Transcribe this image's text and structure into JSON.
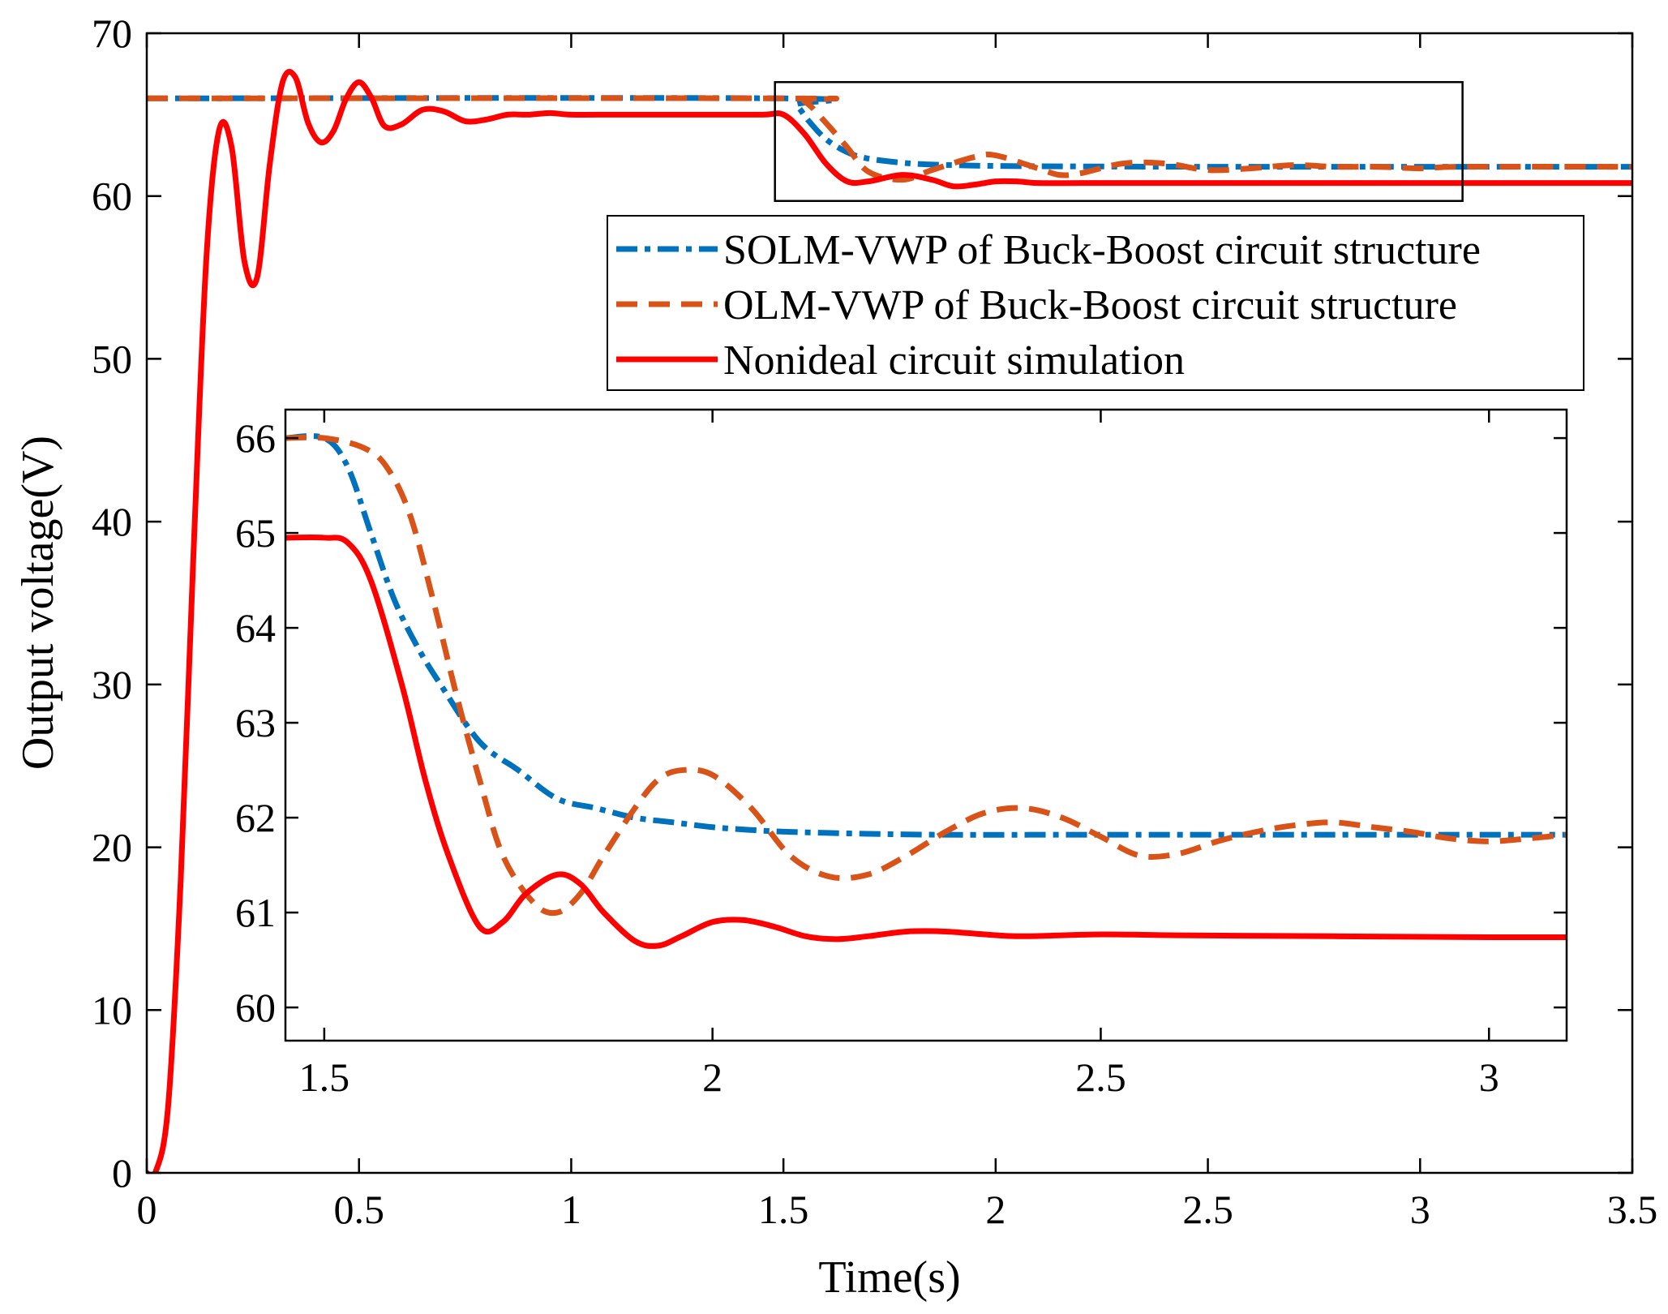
{
  "chart_data": [
    {
      "type": "line",
      "role": "main",
      "xlabel": "Time(s)",
      "ylabel": "Output voltage(V)",
      "xlim": [
        0,
        3.5
      ],
      "ylim": [
        0,
        70
      ],
      "xticks": [
        0,
        0.5,
        1,
        1.5,
        2,
        2.5,
        3,
        3.5
      ],
      "xtick_labels": [
        "0",
        "0.5",
        "1",
        "1.5",
        "2",
        "2.5",
        "3",
        "3.5"
      ],
      "yticks": [
        0,
        10,
        20,
        30,
        40,
        50,
        60,
        70
      ],
      "ytick_labels": [
        "0",
        "10",
        "20",
        "30",
        "40",
        "50",
        "60",
        "70"
      ],
      "grid": false,
      "legend_position": "upper-right, below zoom box",
      "zoom_box": {
        "x": [
          1.48,
          3.1
        ],
        "y": [
          59.7,
          67
        ]
      },
      "series": [
        {
          "name": "SOLM-VWP of Buck-Boost circuit structure",
          "color": "#0072BD",
          "style": "dashdot",
          "x": [
            0,
            1.5,
            1.53,
            1.56,
            1.6,
            1.65,
            1.7,
            1.8,
            1.9,
            2.0,
            2.2,
            2.5,
            3.0,
            3.5
          ],
          "y": [
            66,
            66,
            65.6,
            64.6,
            63.5,
            62.7,
            62.3,
            62.0,
            61.9,
            61.85,
            61.82,
            61.8,
            61.8,
            61.8
          ]
        },
        {
          "name": "OLM-VWP of Buck-Boost circuit structure",
          "color": "#D95319",
          "style": "dashed",
          "x": [
            0,
            1.5,
            1.55,
            1.6,
            1.65,
            1.7,
            1.78,
            1.85,
            1.95,
            2.0,
            2.1,
            2.15,
            2.2,
            2.3,
            2.4,
            2.5,
            2.6,
            2.7,
            2.8,
            2.9,
            3.0,
            3.1,
            3.5
          ],
          "y": [
            66,
            66,
            65.8,
            64.5,
            63.0,
            61.5,
            61.0,
            61.6,
            62.4,
            62.5,
            61.7,
            61.3,
            61.4,
            62.0,
            62.0,
            61.6,
            61.7,
            61.9,
            61.8,
            61.8,
            61.7,
            61.8,
            61.8
          ]
        },
        {
          "name": "Nonideal circuit simulation",
          "color": "#FF0000",
          "style": "solid",
          "x": [
            0,
            0.02,
            0.05,
            0.08,
            0.11,
            0.14,
            0.17,
            0.2,
            0.23,
            0.26,
            0.29,
            0.32,
            0.35,
            0.38,
            0.41,
            0.44,
            0.47,
            0.5,
            0.53,
            0.56,
            0.6,
            0.65,
            0.7,
            0.75,
            0.8,
            0.85,
            0.9,
            0.95,
            1.0,
            1.1,
            1.2,
            1.3,
            1.45,
            1.5,
            1.55,
            1.6,
            1.65,
            1.7,
            1.78,
            1.85,
            1.9,
            1.95,
            2.0,
            2.05,
            2.1,
            2.2,
            2.3,
            2.4,
            2.6,
            3.0,
            3.5
          ],
          "y": [
            0,
            0,
            4,
            18,
            38,
            56,
            64,
            63,
            56,
            55,
            62,
            67,
            67.3,
            64.5,
            63.3,
            64,
            66,
            67,
            66,
            64.3,
            64.4,
            65.3,
            65.2,
            64.6,
            64.7,
            65,
            65,
            65.1,
            65,
            65,
            65,
            65,
            65,
            65,
            63.8,
            62.0,
            60.9,
            60.9,
            61.3,
            61.0,
            60.6,
            60.7,
            60.9,
            60.9,
            60.8,
            60.8,
            60.8,
            60.8,
            60.8,
            60.8,
            60.8
          ]
        }
      ]
    },
    {
      "type": "line",
      "role": "inset",
      "xlim": [
        1.45,
        3.1
      ],
      "ylim": [
        59.65,
        66.3
      ],
      "xticks": [
        1.5,
        2,
        2.5,
        3
      ],
      "xtick_labels": [
        "1.5",
        "2",
        "2.5",
        "3"
      ],
      "yticks": [
        60,
        61,
        62,
        63,
        64,
        65,
        66
      ],
      "ytick_labels": [
        "60",
        "61",
        "62",
        "63",
        "64",
        "65",
        "66"
      ],
      "grid": false,
      "series": [
        {
          "name": "SOLM-VWP of Buck-Boost circuit structure",
          "color": "#0072BD",
          "style": "dashdot",
          "x": [
            1.45,
            1.5,
            1.53,
            1.56,
            1.59,
            1.62,
            1.65,
            1.7,
            1.75,
            1.8,
            1.85,
            1.9,
            1.95,
            2.0,
            2.05,
            2.1,
            2.2,
            2.3,
            2.5,
            2.8,
            3.1
          ],
          "y": [
            66,
            66,
            65.7,
            65.0,
            64.3,
            63.8,
            63.4,
            62.8,
            62.5,
            62.2,
            62.1,
            62.0,
            61.95,
            61.9,
            61.87,
            61.85,
            61.83,
            61.82,
            61.82,
            61.82,
            61.82
          ]
        },
        {
          "name": "OLM-VWP of Buck-Boost circuit structure",
          "color": "#D95319",
          "style": "dashed",
          "x": [
            1.45,
            1.5,
            1.55,
            1.58,
            1.61,
            1.64,
            1.67,
            1.7,
            1.73,
            1.77,
            1.8,
            1.83,
            1.86,
            1.9,
            1.93,
            1.96,
            2.0,
            2.05,
            2.1,
            2.15,
            2.2,
            2.25,
            2.3,
            2.35,
            2.4,
            2.45,
            2.5,
            2.55,
            2.6,
            2.65,
            2.7,
            2.75,
            2.8,
            2.85,
            2.9,
            2.95,
            3.0,
            3.05,
            3.1
          ],
          "y": [
            66,
            66,
            65.9,
            65.7,
            65.2,
            64.3,
            63.3,
            62.4,
            61.6,
            61.1,
            61.0,
            61.2,
            61.6,
            62.1,
            62.4,
            62.5,
            62.45,
            62.1,
            61.6,
            61.38,
            61.4,
            61.6,
            61.85,
            62.05,
            62.1,
            62.0,
            61.8,
            61.6,
            61.62,
            61.75,
            61.85,
            61.92,
            61.95,
            61.9,
            61.85,
            61.78,
            61.75,
            61.78,
            61.82
          ]
        },
        {
          "name": "Nonideal circuit simulation",
          "color": "#FF0000",
          "style": "solid",
          "x": [
            1.45,
            1.5,
            1.53,
            1.56,
            1.6,
            1.63,
            1.66,
            1.7,
            1.73,
            1.76,
            1.8,
            1.83,
            1.86,
            1.9,
            1.93,
            1.96,
            2.0,
            2.04,
            2.08,
            2.12,
            2.16,
            2.2,
            2.25,
            2.3,
            2.35,
            2.4,
            2.5,
            2.6,
            2.8,
            3.0,
            3.1
          ],
          "y": [
            64.95,
            64.95,
            64.9,
            64.5,
            63.4,
            62.4,
            61.6,
            60.85,
            60.9,
            61.2,
            61.4,
            61.3,
            61.0,
            60.7,
            60.65,
            60.75,
            60.9,
            60.92,
            60.85,
            60.75,
            60.72,
            60.75,
            60.8,
            60.8,
            60.77,
            60.75,
            60.77,
            60.76,
            60.75,
            60.74,
            60.74
          ]
        }
      ]
    }
  ]
}
